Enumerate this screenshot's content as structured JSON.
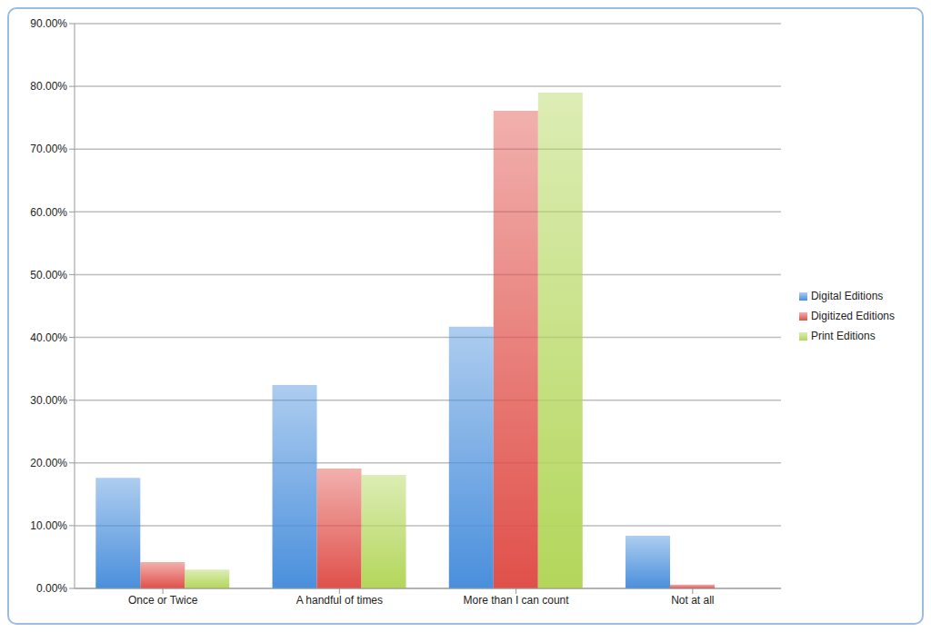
{
  "chart_data": {
    "type": "bar",
    "categories": [
      "Once or Twice",
      "A handful of times",
      "More than I can count",
      "Not at all"
    ],
    "series": [
      {
        "name": "Digital Editions",
        "color": "#4a8fdc",
        "values": [
          17.6,
          32.4,
          41.7,
          8.4
        ]
      },
      {
        "name": "Digitized Editions",
        "color": "#e0504a",
        "values": [
          4.2,
          19.1,
          76.1,
          0.6
        ]
      },
      {
        "name": "Print Editions",
        "color": "#b3d65a",
        "values": [
          3.0,
          18.1,
          79.0,
          0
        ]
      }
    ],
    "ylim": [
      0,
      90
    ],
    "yticks": [
      {
        "value": 0,
        "label": "0.00%"
      },
      {
        "value": 10,
        "label": "10.00%"
      },
      {
        "value": 20,
        "label": "20.00%"
      },
      {
        "value": 30,
        "label": "30.00%"
      },
      {
        "value": 40,
        "label": "40.00%"
      },
      {
        "value": 50,
        "label": "50.00%"
      },
      {
        "value": 60,
        "label": "60.00%"
      },
      {
        "value": 70,
        "label": "70.00%"
      },
      {
        "value": 80,
        "label": "80.00%"
      },
      {
        "value": 90,
        "label": "90.00%"
      }
    ],
    "grid": true,
    "legend": "right"
  }
}
